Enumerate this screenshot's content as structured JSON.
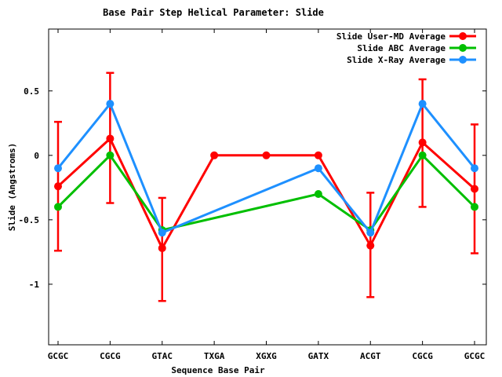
{
  "chart_data": {
    "type": "line",
    "title": "Base Pair Step Helical Parameter: Slide",
    "xlabel": "Sequence Base Pair",
    "ylabel": "Slide (Angstroms)",
    "categories": [
      "GCGC",
      "CGCG",
      "GTAC",
      "TXGA",
      "XGXG",
      "GATX",
      "ACGT",
      "CGCG",
      "GCGC"
    ],
    "y_ticks": [
      0.5,
      0,
      -0.5,
      -1
    ],
    "y_tick_labels": [
      "0.5",
      "0",
      "-0.5",
      "-1"
    ],
    "ylim": [
      -1.47,
      0.98
    ],
    "grid": false,
    "legend_position": "top-right-inside",
    "marker": "filled-circle",
    "series": [
      {
        "name": "Slide User-MD Average",
        "color": "#ff0000",
        "values": [
          -0.24,
          0.13,
          -0.72,
          0.0,
          0.0,
          0.0,
          -0.7,
          0.1,
          -0.26
        ],
        "error_low": [
          -0.74,
          -0.37,
          -1.13,
          null,
          null,
          null,
          -1.1,
          -0.4,
          -0.76
        ],
        "error_high": [
          0.26,
          0.64,
          -0.33,
          null,
          null,
          null,
          -0.29,
          0.59,
          0.24
        ]
      },
      {
        "name": "Slide ABC Average",
        "color": "#00bf00",
        "values": [
          -0.4,
          0.0,
          -0.58,
          null,
          null,
          -0.3,
          -0.58,
          0.0,
          -0.4
        ]
      },
      {
        "name": "Slide X-Ray Average",
        "color": "#1e90ff",
        "values": [
          -0.1,
          0.4,
          -0.6,
          null,
          null,
          -0.1,
          -0.6,
          0.4,
          -0.1
        ]
      }
    ]
  }
}
